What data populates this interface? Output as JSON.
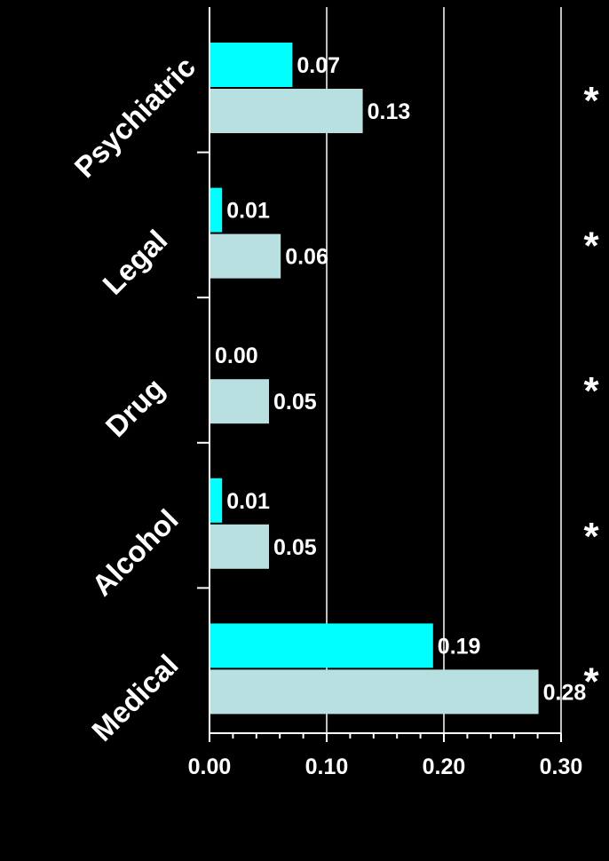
{
  "chart_data": {
    "type": "bar",
    "orientation": "horizontal",
    "categories": [
      "Psychiatric",
      "Legal",
      "Drug",
      "Alcohol",
      "Medical"
    ],
    "series": [
      {
        "values": [
          0.07,
          0.01,
          0.0,
          0.01,
          0.19
        ],
        "color": "#00FFFF"
      },
      {
        "values": [
          0.13,
          0.06,
          0.05,
          0.05,
          0.28
        ],
        "color": "#B8E0E0"
      }
    ],
    "value_labels": [
      [
        "0.07",
        "0.01",
        "0.00",
        "0.01",
        "0.19"
      ],
      [
        "0.13",
        "0.06",
        "0.05",
        "0.05",
        "0.28"
      ]
    ],
    "significance_markers": [
      "*",
      "*",
      "*",
      "*",
      "*"
    ],
    "xlim": [
      0,
      0.3
    ],
    "xticks": [
      "0.00",
      "0.10",
      "0.20",
      "0.30"
    ],
    "grid": "vertical",
    "background": "#000000",
    "text_color": "#FFFFFF"
  }
}
